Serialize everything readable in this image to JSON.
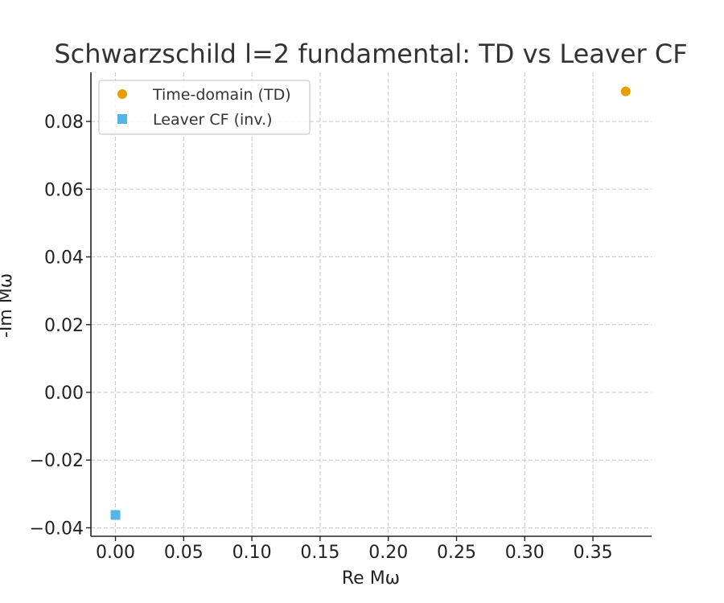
{
  "chart_data": {
    "type": "scatter",
    "title": "Schwarzschild l=2 fundamental: TD vs Leaver CF",
    "xlabel": "Re Mω",
    "ylabel": "-Im Mω",
    "xlim": [
      -0.018,
      0.393
    ],
    "ylim": [
      -0.0425,
      0.0945
    ],
    "xticks": [
      0.0,
      0.05,
      0.1,
      0.15,
      0.2,
      0.25,
      0.3,
      0.35
    ],
    "xtick_labels": [
      "0.00",
      "0.05",
      "0.10",
      "0.15",
      "0.20",
      "0.25",
      "0.30",
      "0.35"
    ],
    "yticks": [
      -0.04,
      -0.02,
      0.0,
      0.02,
      0.04,
      0.06,
      0.08
    ],
    "ytick_labels": [
      "−0.04",
      "−0.02",
      "0.00",
      "0.02",
      "0.04",
      "0.06",
      "0.08"
    ],
    "grid": true,
    "legend_position": "top-left",
    "series": [
      {
        "name": "Time-domain (TD)",
        "marker": "circle",
        "color": "#E69F00",
        "points": [
          {
            "x": 0.374,
            "y": 0.0889
          }
        ]
      },
      {
        "name": "Leaver CF (inv.)",
        "marker": "square",
        "color": "#56B4E9",
        "points": [
          {
            "x": 0.0,
            "y": -0.0362
          }
        ]
      }
    ]
  }
}
